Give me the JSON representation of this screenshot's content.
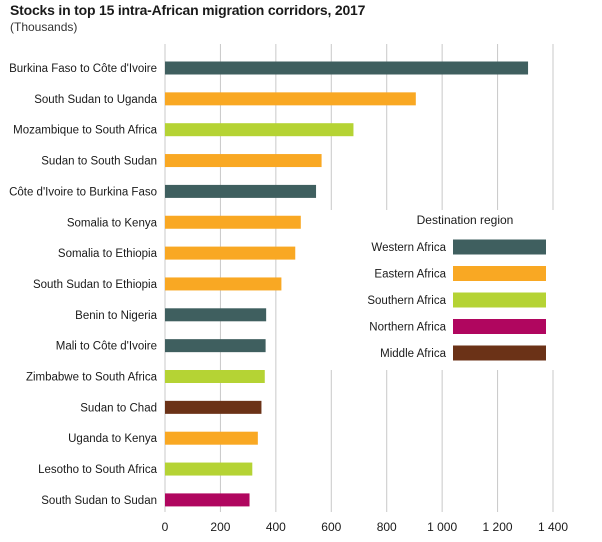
{
  "chart_data": {
    "type": "bar",
    "orientation": "horizontal",
    "title": "Stocks in top 15 intra-African migration corridors, 2017",
    "subtitle": "(Thousands)",
    "xlim": [
      0,
      1400
    ],
    "xticks": [
      0,
      200,
      400,
      600,
      800,
      1000,
      1200,
      1400
    ],
    "xtick_labels": [
      "0",
      "200",
      "400",
      "600",
      "800",
      "1 000",
      "1 200",
      "1 400"
    ],
    "grid": "vertical",
    "categories": [
      "Burkina Faso to Côte d'Ivoire",
      "South Sudan to Uganda",
      "Mozambique to South Africa",
      "Sudan to South Sudan",
      "Côte d'Ivoire to Burkina Faso",
      "Somalia to Kenya",
      "Somalia to Ethiopia",
      "South Sudan to Ethiopia",
      "Benin to Nigeria",
      "Mali to Côte d'Ivoire",
      "Zimbabwe to South Africa",
      "Sudan to Chad",
      "Uganda to Kenya",
      "Lesotho to South Africa",
      "South Sudan to Sudan"
    ],
    "values": [
      1310,
      905,
      680,
      565,
      545,
      490,
      470,
      420,
      365,
      363,
      360,
      348,
      335,
      315,
      305
    ],
    "regions": [
      "Western Africa",
      "Eastern Africa",
      "Southern Africa",
      "Eastern Africa",
      "Western Africa",
      "Eastern Africa",
      "Eastern Africa",
      "Eastern Africa",
      "Western Africa",
      "Western Africa",
      "Southern Africa",
      "Middle Africa",
      "Eastern Africa",
      "Southern Africa",
      "Northern Africa"
    ],
    "legend": {
      "title": "Destination region",
      "placement": "right",
      "entries": [
        {
          "name": "Western Africa",
          "color": "#3f5f5f"
        },
        {
          "name": "Eastern Africa",
          "color": "#f9a823"
        },
        {
          "name": "Southern Africa",
          "color": "#b5d334"
        },
        {
          "name": "Northern Africa",
          "color": "#b0065f"
        },
        {
          "name": "Middle Africa",
          "color": "#6b3217"
        }
      ]
    }
  }
}
